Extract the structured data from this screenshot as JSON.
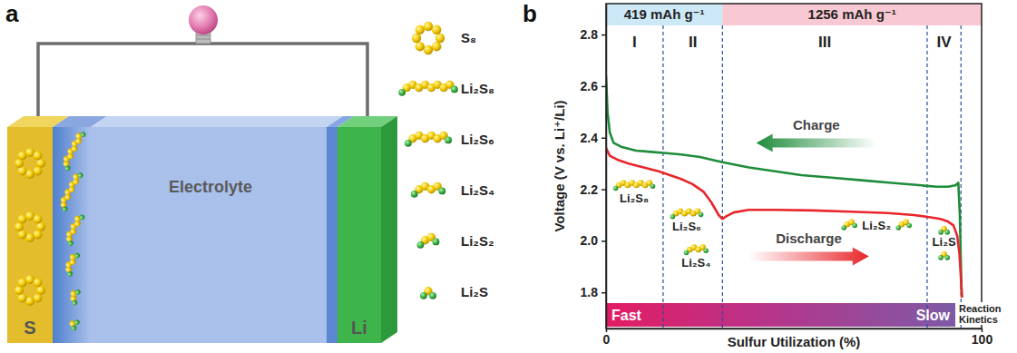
{
  "diagram": {
    "letter": "a",
    "cathode": "S",
    "anode": "Li",
    "electrolyte": "Electrolyte",
    "species": [
      "S₈",
      "Li₂S₈",
      "Li₂S₆",
      "Li₂S₄",
      "Li₂S₂",
      "Li₂S"
    ]
  },
  "chart_data": {
    "type": "line",
    "letter": "b",
    "x_label": "Sulfur Utilization (%)",
    "y_label": "Voltage (V vs. Li⁺/Li)",
    "xlim": [
      0,
      100
    ],
    "xticks": [
      0,
      100
    ],
    "ylim": [
      1.66,
      2.92
    ],
    "yticks": [
      1.8,
      {
        "value": 2,
        "label": "2.0"
      },
      2.2,
      2.4,
      2.6,
      2.8
    ],
    "series": [
      {
        "color": "#1e8c3a",
        "x": [
          0,
          0.4,
          1,
          2,
          4,
          8,
          12,
          16,
          20,
          25,
          31,
          38,
          45,
          52,
          60,
          68,
          76,
          84,
          88,
          91,
          93,
          93.8,
          94.2,
          94.5,
          94.7
        ],
        "values": [
          2.64,
          2.5,
          2.42,
          2.38,
          2.365,
          2.35,
          2.345,
          2.34,
          2.335,
          2.325,
          2.305,
          2.285,
          2.27,
          2.255,
          2.245,
          2.235,
          2.225,
          2.215,
          2.21,
          2.21,
          2.215,
          2.225,
          2.1,
          1.9,
          1.78
        ]
      },
      {
        "color": "#e8262b",
        "x": [
          0,
          1,
          3,
          6,
          10,
          14,
          17,
          20,
          23,
          26,
          28,
          30,
          31,
          32,
          34,
          38,
          45,
          55,
          65,
          75,
          82,
          86,
          89,
          91,
          92.5,
          93.5,
          94.1,
          94.5,
          94.8
        ],
        "values": [
          2.36,
          2.33,
          2.315,
          2.3,
          2.285,
          2.27,
          2.255,
          2.24,
          2.22,
          2.19,
          2.15,
          2.1,
          2.085,
          2.095,
          2.11,
          2.12,
          2.12,
          2.118,
          2.113,
          2.108,
          2.1,
          2.092,
          2.085,
          2.075,
          2.06,
          2.02,
          1.95,
          1.85,
          1.78
        ]
      }
    ],
    "arrows": [
      {
        "label": "Charge",
        "x": [
          72,
          40
        ],
        "y": 2.38
      },
      {
        "label": "Discharge",
        "x": [
          38,
          70
        ],
        "y": 1.94
      }
    ],
    "capacity_bands": [
      {
        "label": "419 mAh g⁻¹",
        "start": 0,
        "end": 31,
        "color": "#cde9f8"
      },
      {
        "label": "1256 mAh g⁻¹",
        "start": 31,
        "end": 100,
        "color": "#f8c9d3"
      }
    ],
    "stages": [
      {
        "label": "I",
        "start": 0,
        "end": 15.2
      },
      {
        "label": "II",
        "start": 15.2,
        "end": 31
      },
      {
        "label": "III",
        "start": 31,
        "end": 85.5
      },
      {
        "label": "IV",
        "start": 85.5,
        "end": 94.5
      }
    ],
    "species": [
      {
        "label": "Li₂S₈",
        "x": 7.5,
        "y": 2.15
      },
      {
        "label": "Li₂S₆",
        "x": 21.5,
        "y": 2.04
      },
      {
        "label": "Li₂S₄",
        "x": 24,
        "y": 1.9
      },
      {
        "label": "Li₂S₂",
        "x": 72,
        "y": 2.045
      },
      {
        "label": "Li₂S",
        "x": 90,
        "y": 1.98
      }
    ],
    "kinetics": {
      "start_label": "Fast",
      "end_label": "Slow",
      "title": "Reaction Kinetics",
      "start": 0,
      "end": 93
    }
  }
}
